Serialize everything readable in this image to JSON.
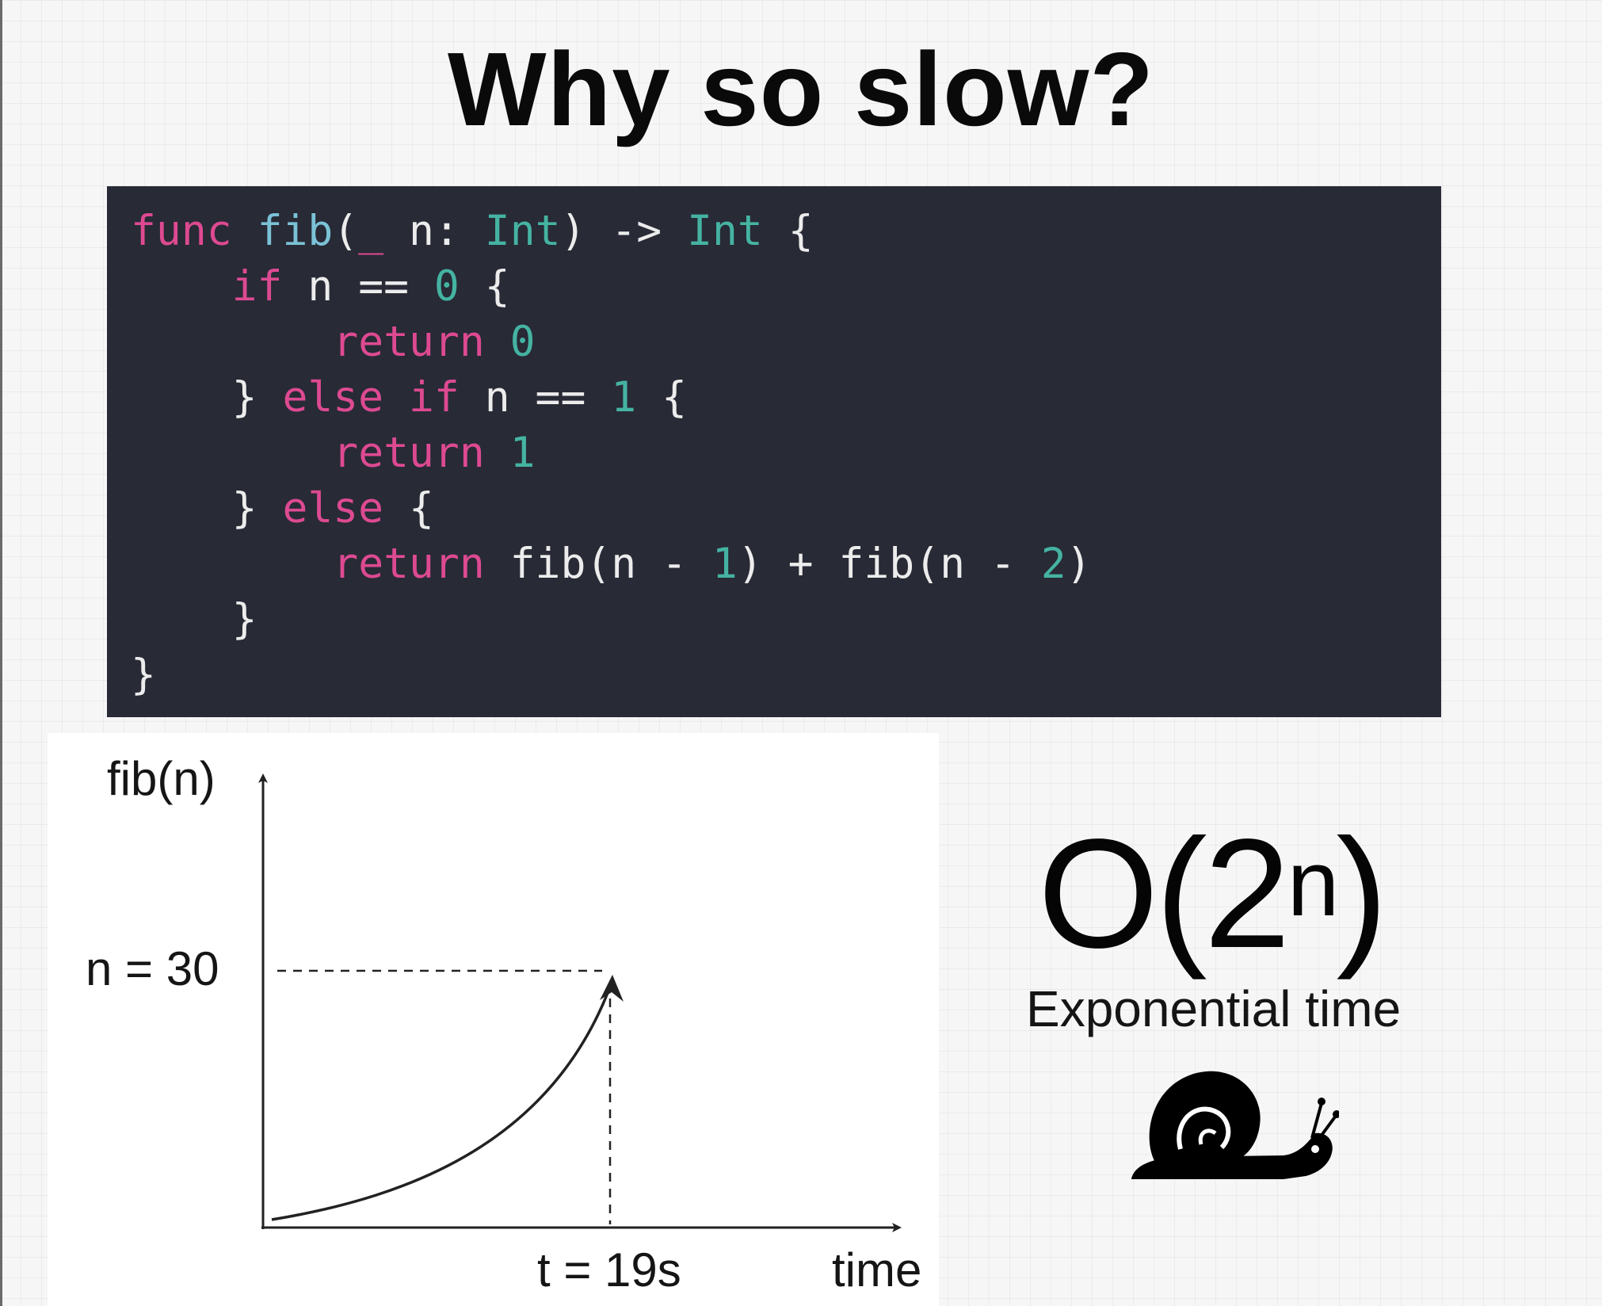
{
  "slide": {
    "title": "Why so slow?"
  },
  "code": {
    "lines": [
      [
        {
          "t": "func",
          "c": "kw"
        },
        {
          "t": " ",
          "c": "plain"
        },
        {
          "t": "fib",
          "c": "fn"
        },
        {
          "t": "(",
          "c": "plain"
        },
        {
          "t": "_",
          "c": "kw"
        },
        {
          "t": " n: ",
          "c": "plain"
        },
        {
          "t": "Int",
          "c": "type"
        },
        {
          "t": ") -> ",
          "c": "plain"
        },
        {
          "t": "Int",
          "c": "type"
        },
        {
          "t": " {",
          "c": "plain"
        }
      ],
      [
        {
          "t": "    ",
          "c": "plain"
        },
        {
          "t": "if",
          "c": "kw"
        },
        {
          "t": " n == ",
          "c": "plain"
        },
        {
          "t": "0",
          "c": "num"
        },
        {
          "t": " {",
          "c": "plain"
        }
      ],
      [
        {
          "t": "        ",
          "c": "plain"
        },
        {
          "t": "return",
          "c": "kw"
        },
        {
          "t": " ",
          "c": "plain"
        },
        {
          "t": "0",
          "c": "num"
        }
      ],
      [
        {
          "t": "    } ",
          "c": "plain"
        },
        {
          "t": "else if",
          "c": "kw"
        },
        {
          "t": " n == ",
          "c": "plain"
        },
        {
          "t": "1",
          "c": "num"
        },
        {
          "t": " {",
          "c": "plain"
        }
      ],
      [
        {
          "t": "        ",
          "c": "plain"
        },
        {
          "t": "return",
          "c": "kw"
        },
        {
          "t": " ",
          "c": "plain"
        },
        {
          "t": "1",
          "c": "num"
        }
      ],
      [
        {
          "t": "    } ",
          "c": "plain"
        },
        {
          "t": "else",
          "c": "kw"
        },
        {
          "t": " {",
          "c": "plain"
        }
      ],
      [
        {
          "t": "        ",
          "c": "plain"
        },
        {
          "t": "return",
          "c": "kw"
        },
        {
          "t": " fib(n - ",
          "c": "plain"
        },
        {
          "t": "1",
          "c": "num"
        },
        {
          "t": ") + fib(n - ",
          "c": "plain"
        },
        {
          "t": "2",
          "c": "num"
        },
        {
          "t": ")",
          "c": "plain"
        }
      ],
      [
        {
          "t": "    }",
          "c": "plain"
        }
      ],
      [
        {
          "t": "}",
          "c": "plain"
        }
      ]
    ]
  },
  "graph": {
    "y_label": "fib(n)",
    "x_label": "time",
    "n_marker": "n = 30",
    "t_marker": "t = 19s"
  },
  "complexity": {
    "base": "O(2",
    "exponent": "n",
    "close": ")",
    "caption": "Exponential time"
  },
  "icons": {
    "snail": "snail-icon"
  }
}
